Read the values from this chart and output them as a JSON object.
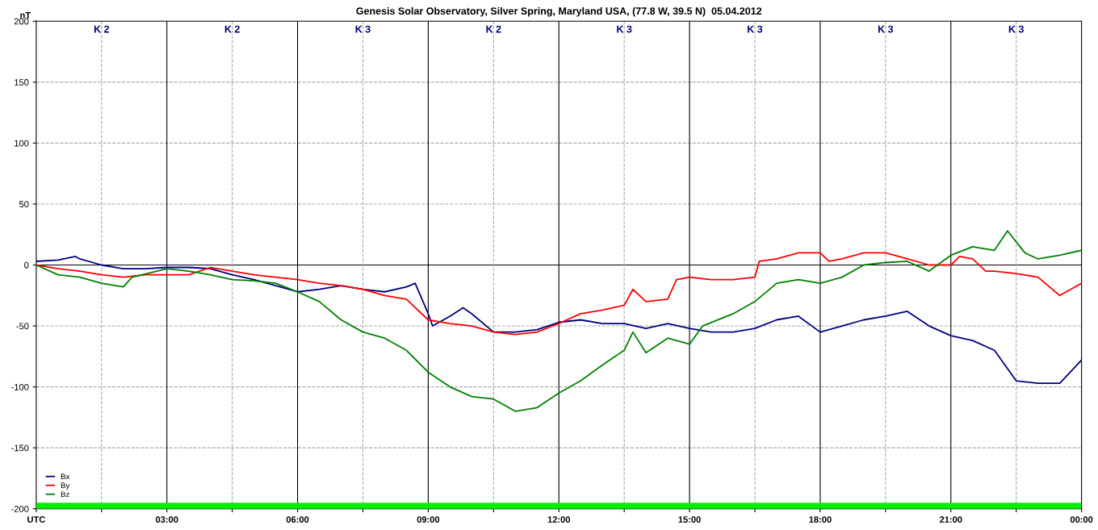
{
  "chart_data": {
    "type": "line",
    "title": "Genesis Solar Observatory, Silver Spring, Maryland USA, (77.8 W, 39.5 N)  05.04.2012",
    "ylabel": "nT",
    "xlim": [
      0,
      24
    ],
    "ylim": [
      -200,
      200
    ],
    "xticks": [
      {
        "value": 0,
        "label": "UTC"
      },
      {
        "value": 1.5,
        "label": null
      },
      {
        "value": 3,
        "label": "03:00"
      },
      {
        "value": 4.5,
        "label": null
      },
      {
        "value": 6,
        "label": "06:00"
      },
      {
        "value": 7.5,
        "label": null
      },
      {
        "value": 9,
        "label": "09:00"
      },
      {
        "value": 10.5,
        "label": null
      },
      {
        "value": 12,
        "label": "12:00"
      },
      {
        "value": 13.5,
        "label": null
      },
      {
        "value": 15,
        "label": "15:00"
      },
      {
        "value": 16.5,
        "label": null
      },
      {
        "value": 18,
        "label": "18:00"
      },
      {
        "value": 19.5,
        "label": null
      },
      {
        "value": 21,
        "label": "21:00"
      },
      {
        "value": 22.5,
        "label": null
      },
      {
        "value": 24,
        "label": "00:00"
      }
    ],
    "yticks": [
      -200,
      -150,
      -100,
      -50,
      0,
      50,
      100,
      150,
      200
    ],
    "grid": false,
    "legend": "bottom left",
    "line_style": "solid",
    "ref_lines": [
      {
        "axis": "y",
        "value": 0,
        "color": "#000000"
      },
      {
        "axis": "y",
        "value": -150,
        "color": "#aaaaaa",
        "line_style": "dashed"
      },
      {
        "axis": "y",
        "value": -100,
        "color": "#aaaaaa",
        "line_style": "dashed"
      },
      {
        "axis": "y",
        "value": -50,
        "color": "#aaaaaa",
        "line_style": "dashed"
      },
      {
        "axis": "y",
        "value": 50,
        "color": "#aaaaaa",
        "line_style": "dashed"
      },
      {
        "axis": "y",
        "value": 100,
        "color": "#aaaaaa",
        "line_style": "dashed"
      },
      {
        "axis": "y",
        "value": 150,
        "color": "#aaaaaa",
        "line_style": "dashed"
      },
      {
        "axis": "x",
        "value": 1.5,
        "color": "#aaaaaa",
        "line_style": "dashed"
      },
      {
        "axis": "x",
        "value": 4.5,
        "color": "#aaaaaa",
        "line_style": "dashed"
      },
      {
        "axis": "x",
        "value": 7.5,
        "color": "#aaaaaa",
        "line_style": "dashed"
      },
      {
        "axis": "x",
        "value": 10.5,
        "color": "#aaaaaa",
        "line_style": "dashed"
      },
      {
        "axis": "x",
        "value": 13.5,
        "color": "#aaaaaa",
        "line_style": "dashed"
      },
      {
        "axis": "x",
        "value": 16.5,
        "color": "#aaaaaa",
        "line_style": "dashed"
      },
      {
        "axis": "x",
        "value": 19.5,
        "color": "#aaaaaa",
        "line_style": "dashed"
      },
      {
        "axis": "x",
        "value": 22.5,
        "color": "#aaaaaa",
        "line_style": "dashed"
      },
      {
        "axis": "x",
        "value": 3,
        "color": "#000000"
      },
      {
        "axis": "x",
        "value": 6,
        "color": "#000000"
      },
      {
        "axis": "x",
        "value": 9,
        "color": "#000000"
      },
      {
        "axis": "x",
        "value": 12,
        "color": "#000000"
      },
      {
        "axis": "x",
        "value": 15,
        "color": "#000000"
      },
      {
        "axis": "x",
        "value": 18,
        "color": "#000000"
      },
      {
        "axis": "x",
        "value": 21,
        "color": "#000000"
      }
    ],
    "bands": [
      {
        "axis": "y",
        "from": -200,
        "to": -195,
        "color": "#00ee00"
      }
    ],
    "annotations": [
      "K 2",
      "K 2",
      "K 3",
      "K 2",
      "K 3",
      "K 3",
      "K 3",
      "K 3"
    ],
    "series": [
      {
        "name": "Bx",
        "color": "#000080",
        "x": [
          0,
          0.5,
          0.9,
          1,
          1.5,
          2,
          2.5,
          3,
          3.5,
          4,
          4.5,
          5,
          5.5,
          6,
          6.5,
          7,
          7.5,
          8,
          8.5,
          8.7,
          9,
          9.1,
          9.5,
          9.8,
          10,
          10.5,
          11,
          11.5,
          12,
          12.5,
          13,
          13.5,
          14,
          14.5,
          15,
          15.5,
          16,
          16.5,
          17,
          17.5,
          18,
          18.5,
          19,
          19.5,
          20,
          20.5,
          21,
          21.5,
          22,
          22.5,
          23,
          23.5,
          24
        ],
        "values": [
          3,
          4,
          7,
          5,
          0,
          -3,
          -3,
          -2,
          -2,
          -3,
          -8,
          -12,
          -17,
          -22,
          -20,
          -17,
          -20,
          -22,
          -18,
          -15,
          -40,
          -50,
          -42,
          -35,
          -40,
          -55,
          -55,
          -53,
          -47,
          -45,
          -48,
          -48,
          -52,
          -48,
          -52,
          -55,
          -55,
          -52,
          -45,
          -42,
          -55,
          -50,
          -45,
          -42,
          -38,
          -50,
          -58,
          -62,
          -70,
          -95,
          -97,
          -97,
          -78
        ]
      },
      {
        "name": "By",
        "color": "#ff0000",
        "x": [
          0,
          0.5,
          1,
          1.5,
          2,
          2.5,
          3,
          3.5,
          4,
          4.5,
          5,
          5.5,
          6,
          6.5,
          7,
          7.5,
          8,
          8.5,
          9,
          9.5,
          10,
          10.5,
          11,
          11.5,
          12,
          12.5,
          13,
          13.5,
          13.7,
          14,
          14.5,
          14.7,
          15,
          15.5,
          16,
          16.5,
          16.6,
          17,
          17.5,
          18,
          18.2,
          18.5,
          19,
          19.5,
          20,
          20.5,
          21,
          21.2,
          21.5,
          21.8,
          22,
          22.5,
          23,
          23.5,
          24
        ],
        "values": [
          0,
          -3,
          -5,
          -8,
          -10,
          -8,
          -8,
          -8,
          -2,
          -5,
          -8,
          -10,
          -12,
          -15,
          -17,
          -20,
          -25,
          -28,
          -45,
          -48,
          -50,
          -55,
          -57,
          -55,
          -48,
          -40,
          -37,
          -33,
          -20,
          -30,
          -28,
          -12,
          -10,
          -12,
          -12,
          -10,
          3,
          5,
          10,
          10,
          3,
          5,
          10,
          10,
          5,
          0,
          0,
          7,
          5,
          -5,
          -5,
          -7,
          -10,
          -25,
          -15
        ]
      },
      {
        "name": "Bz",
        "color": "#008000",
        "x": [
          0,
          0.5,
          1,
          1.5,
          2,
          2.2,
          3,
          3.5,
          4,
          4.5,
          5,
          5.5,
          6,
          6.5,
          7,
          7.5,
          8,
          8.5,
          9,
          9.5,
          10,
          10.5,
          11,
          11.5,
          12,
          12.5,
          13,
          13.5,
          13.7,
          14,
          14.5,
          15,
          15.3,
          16,
          16.5,
          17,
          17.5,
          18,
          18.5,
          19,
          19.5,
          20,
          20.5,
          21,
          21.5,
          22,
          22.3,
          22.7,
          23,
          23.5,
          24
        ],
        "values": [
          0,
          -8,
          -10,
          -15,
          -18,
          -10,
          -3,
          -5,
          -8,
          -12,
          -13,
          -15,
          -22,
          -30,
          -45,
          -55,
          -60,
          -70,
          -88,
          -100,
          -108,
          -110,
          -120,
          -117,
          -105,
          -95,
          -82,
          -70,
          -55,
          -72,
          -60,
          -65,
          -50,
          -40,
          -30,
          -15,
          -12,
          -15,
          -10,
          0,
          2,
          3,
          -5,
          8,
          15,
          12,
          28,
          10,
          5,
          8,
          12
        ]
      }
    ]
  }
}
